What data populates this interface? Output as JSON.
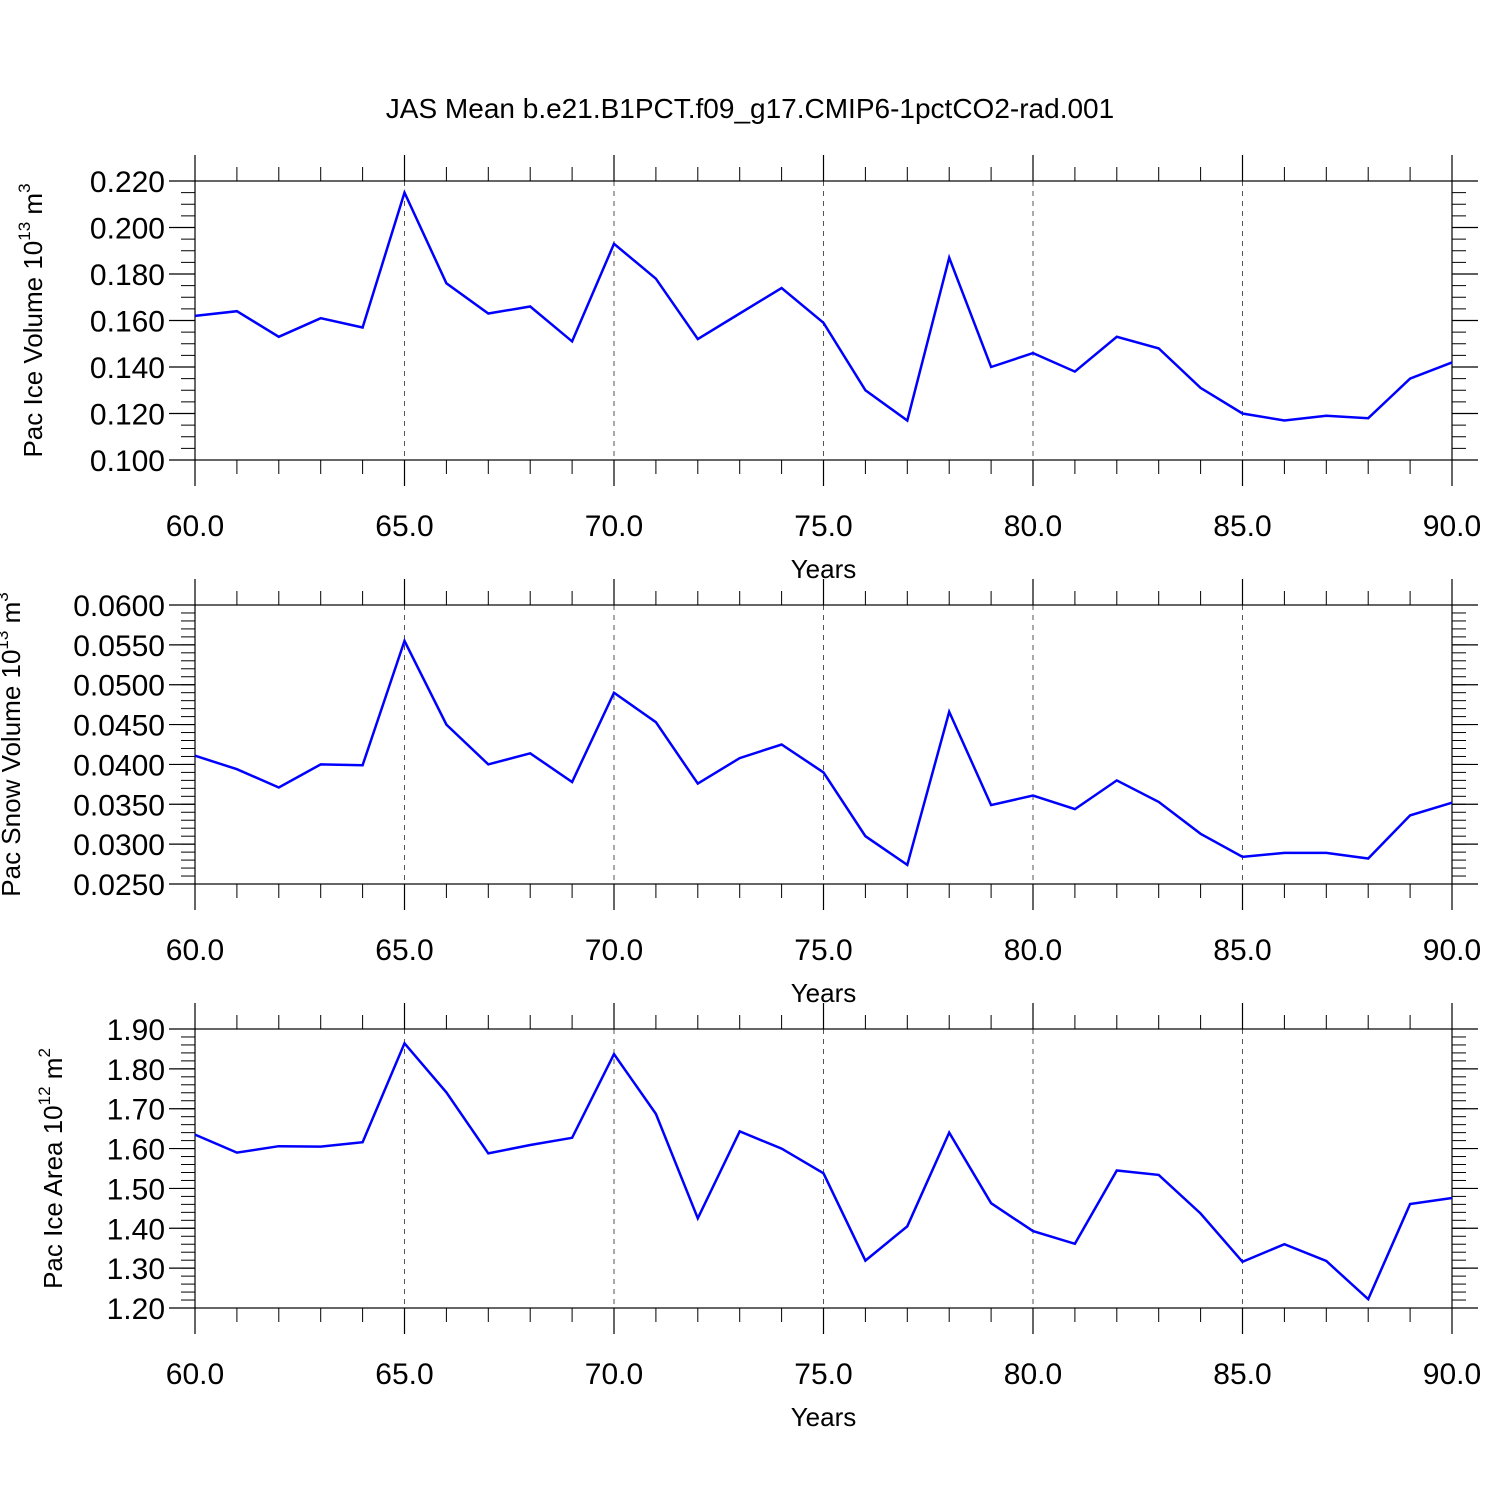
{
  "title": "JAS Mean b.e21.B1PCT.f09_g17.CMIP6-1pctCO2-rad.001",
  "colors": {
    "line": "#0000ff",
    "axis": "#000000",
    "grid": "#555555"
  },
  "chart_data": [
    {
      "type": "line",
      "ylabel": "Pac Ice Volume 10",
      "ylabel_sup": "13",
      "ylabel_unit": " m",
      "ylabel_unit_sup": "3",
      "xlabel": "Years",
      "xlim": [
        60,
        90
      ],
      "ylim": [
        0.1,
        0.22
      ],
      "y_ticks": [
        0.1,
        0.12,
        0.14,
        0.16,
        0.18,
        0.2,
        0.22
      ],
      "y_tick_labels": [
        "0.100",
        "0.120",
        "0.140",
        "0.160",
        "0.180",
        "0.200",
        "0.220"
      ],
      "y_minor_step": 0.005,
      "x_ticks": [
        60,
        65,
        70,
        75,
        80,
        85,
        90
      ],
      "x_tick_labels": [
        "60.0",
        "65.0",
        "70.0",
        "75.0",
        "80.0",
        "85.0",
        "90.0"
      ],
      "vertical_gridlines": [
        65,
        70,
        75,
        80,
        85
      ],
      "x": [
        60,
        61,
        62,
        63,
        64,
        65,
        66,
        67,
        68,
        69,
        70,
        71,
        72,
        73,
        74,
        75,
        76,
        77,
        78,
        79,
        80,
        81,
        82,
        83,
        84,
        85,
        86,
        87,
        88,
        89,
        90
      ],
      "values": [
        0.162,
        0.164,
        0.153,
        0.161,
        0.157,
        0.215,
        0.176,
        0.163,
        0.166,
        0.151,
        0.193,
        0.178,
        0.152,
        0.163,
        0.174,
        0.159,
        0.13,
        0.117,
        0.187,
        0.14,
        0.146,
        0.138,
        0.153,
        0.148,
        0.131,
        0.12,
        0.117,
        0.119,
        0.118,
        0.135,
        0.142
      ]
    },
    {
      "type": "line",
      "ylabel": "Pac Snow Volume 10",
      "ylabel_sup": "13",
      "ylabel_unit": " m",
      "ylabel_unit_sup": "3",
      "xlabel": "Years",
      "xlim": [
        60,
        90
      ],
      "ylim": [
        0.025,
        0.06
      ],
      "y_ticks": [
        0.025,
        0.03,
        0.035,
        0.04,
        0.045,
        0.05,
        0.055,
        0.06
      ],
      "y_tick_labels": [
        "0.0250",
        "0.0300",
        "0.0350",
        "0.0400",
        "0.0450",
        "0.0500",
        "0.0550",
        "0.0600"
      ],
      "y_minor_step": 0.001,
      "x_ticks": [
        60,
        65,
        70,
        75,
        80,
        85,
        90
      ],
      "x_tick_labels": [
        "60.0",
        "65.0",
        "70.0",
        "75.0",
        "80.0",
        "85.0",
        "90.0"
      ],
      "vertical_gridlines": [
        65,
        70,
        75,
        80,
        85
      ],
      "x": [
        60,
        61,
        62,
        63,
        64,
        65,
        66,
        67,
        68,
        69,
        70,
        71,
        72,
        73,
        74,
        75,
        76,
        77,
        78,
        79,
        80,
        81,
        82,
        83,
        84,
        85,
        86,
        87,
        88,
        89,
        90
      ],
      "values": [
        0.0411,
        0.0394,
        0.0371,
        0.04,
        0.0399,
        0.0555,
        0.045,
        0.04,
        0.0414,
        0.0378,
        0.049,
        0.0453,
        0.0376,
        0.0408,
        0.0425,
        0.039,
        0.031,
        0.0274,
        0.0466,
        0.0349,
        0.0361,
        0.0344,
        0.038,
        0.0353,
        0.0313,
        0.0284,
        0.0289,
        0.0289,
        0.0282,
        0.0336,
        0.0352
      ]
    },
    {
      "type": "line",
      "ylabel": "Pac Ice Area 10",
      "ylabel_sup": "12",
      "ylabel_unit": " m",
      "ylabel_unit_sup": "2",
      "xlabel": "Years",
      "xlim": [
        60,
        90
      ],
      "ylim": [
        1.2,
        1.9
      ],
      "y_ticks": [
        1.2,
        1.3,
        1.4,
        1.5,
        1.6,
        1.7,
        1.8,
        1.9
      ],
      "y_tick_labels": [
        "1.20",
        "1.30",
        "1.40",
        "1.50",
        "1.60",
        "1.70",
        "1.80",
        "1.90"
      ],
      "y_minor_step": 0.02,
      "x_ticks": [
        60,
        65,
        70,
        75,
        80,
        85,
        90
      ],
      "x_tick_labels": [
        "60.0",
        "65.0",
        "70.0",
        "75.0",
        "80.0",
        "85.0",
        "90.0"
      ],
      "vertical_gridlines": [
        65,
        70,
        75,
        80,
        85
      ],
      "x": [
        60,
        61,
        62,
        63,
        64,
        65,
        66,
        67,
        68,
        69,
        70,
        71,
        72,
        73,
        74,
        75,
        76,
        77,
        78,
        79,
        80,
        81,
        82,
        83,
        84,
        85,
        86,
        87,
        88,
        89,
        90
      ],
      "values": [
        1.635,
        1.59,
        1.606,
        1.605,
        1.616,
        1.864,
        1.741,
        1.588,
        1.609,
        1.627,
        1.837,
        1.687,
        1.425,
        1.643,
        1.6,
        1.538,
        1.319,
        1.405,
        1.64,
        1.463,
        1.393,
        1.361,
        1.545,
        1.534,
        1.437,
        1.316,
        1.36,
        1.318,
        1.222,
        1.461,
        1.476
      ]
    }
  ]
}
